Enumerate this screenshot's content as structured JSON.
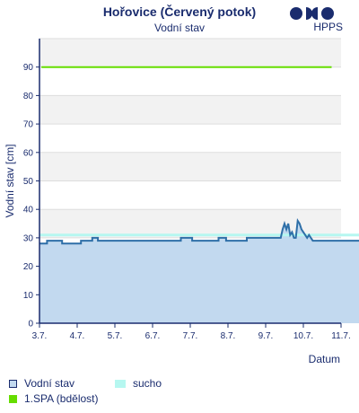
{
  "chart_data": {
    "type": "area",
    "title": "Hořovice (Červený potok)",
    "subtitle": "Vodní stav",
    "logo_text": "HPPS",
    "xlabel": "Datum",
    "ylabel": "Vodní stav [cm]",
    "ylim": [
      0,
      100
    ],
    "y_ticks": [
      0,
      10,
      20,
      30,
      40,
      50,
      60,
      70,
      80,
      90
    ],
    "x_ticks": [
      "3.7.",
      "4.7.",
      "5.7.",
      "6.7.",
      "7.7.",
      "8.7.",
      "9.7.",
      "10.7.",
      "11.7."
    ],
    "xlim_days": [
      3,
      11
    ],
    "grid": true,
    "series": [
      {
        "name": "Vodní stav",
        "color": "#2e6fa8",
        "fill": "#c2d9ef",
        "x_days": [
          3.0,
          3.2,
          3.2,
          3.6,
          3.6,
          4.1,
          4.1,
          4.4,
          4.4,
          4.55,
          4.55,
          6.75,
          6.75,
          7.05,
          7.05,
          7.75,
          7.75,
          7.95,
          7.95,
          8.5,
          8.5,
          9.4,
          9.45,
          9.5,
          9.55,
          9.6,
          9.65,
          9.7,
          9.75,
          9.8,
          9.85,
          9.9,
          9.95,
          10.1,
          10.15,
          10.2,
          10.25,
          10.3,
          10.35,
          10.4,
          10.45,
          10.5,
          10.55,
          10.75,
          10.75,
          11.5
        ],
        "values": [
          28,
          28,
          29,
          29,
          28,
          28,
          29,
          29,
          30,
          30,
          29,
          29,
          30,
          30,
          29,
          29,
          30,
          30,
          29,
          29,
          30,
          30,
          33,
          35,
          33,
          35,
          31,
          32,
          30,
          30,
          36,
          35,
          33,
          30,
          31,
          30,
          29,
          29,
          29,
          29,
          29,
          29,
          29,
          29,
          29,
          29
        ]
      }
    ],
    "thresholds": [
      {
        "name": "1.SPA (bdělost)",
        "value": 90,
        "color": "#66dd00"
      },
      {
        "name": "sucho",
        "value": 31,
        "color": "#b6f7f0"
      }
    ],
    "legend": [
      {
        "label": "Vodní stav",
        "kind": "outline",
        "color": "#1a2c6e",
        "fill": "#c2d9ef"
      },
      {
        "label": "sucho",
        "kind": "solid",
        "color": "#b6f7f0"
      },
      {
        "label": "1.SPA (bdělost)",
        "kind": "solid",
        "color": "#66dd00"
      }
    ],
    "legend_position": "bottom-left"
  }
}
